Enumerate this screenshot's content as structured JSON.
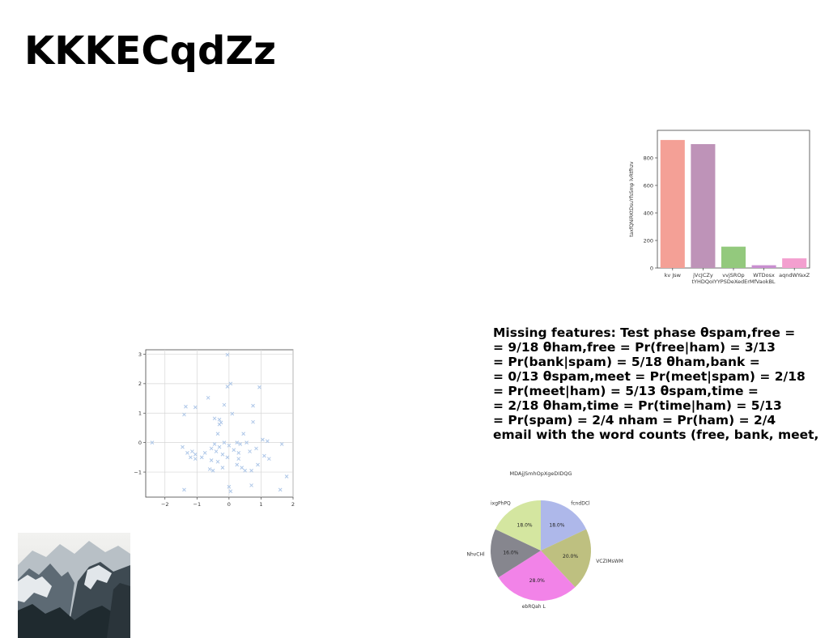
{
  "title": "KKKECqdZz",
  "text_lines": [
    "Missing features: Test phase θspam,free =",
    "= 9/18 θham,free = Pr(free|ham) = 3/13",
    "= Pr(bank|spam) = 5/18 θham,bank =",
    "= 0/13 θspam,meet = Pr(meet|spam) = 2/18",
    "= Pr(meet|ham) = 5/13 θspam,time =",
    "= 2/18 θham,time = Pr(time|ham) = 5/13",
    "= Pr(spam) = 2/4 nham = Pr(ham) = 2/4",
    "email with the word counts (free, bank, meet,"
  ],
  "chart_data": [
    {
      "type": "bar",
      "title": "",
      "xlabel": "tYHDQoIYYPSDeXedErMfVaokBL",
      "ylabel": "taxfQNiRKtDsuYfsSmp lvRtfhzv",
      "categories": [
        "kv Jsw",
        "jVcJCZy",
        "vvjSROp",
        "WTDosx",
        "aqndWYaxZ"
      ],
      "values": [
        930,
        900,
        155,
        20,
        70
      ],
      "colors": [
        "#f4a096",
        "#be93b8",
        "#93c97d",
        "#c98ed0",
        "#f39fcf"
      ],
      "ylim": [
        0,
        1000
      ],
      "yticks": [
        0,
        200,
        400,
        600,
        800
      ],
      "grid": false
    },
    {
      "type": "scatter",
      "title": "",
      "xlim": [
        -2.6,
        2.0
      ],
      "ylim": [
        -1.85,
        3.15
      ],
      "xticks": [
        -2,
        -1,
        0,
        1,
        2
      ],
      "yticks": [
        -1,
        0,
        1,
        2,
        3
      ],
      "marker": "x",
      "color": "#aec7e8",
      "grid": true,
      "points": [
        [
          -0.05,
          2.98
        ],
        [
          0.05,
          2.0
        ],
        [
          0.95,
          1.88
        ],
        [
          -0.05,
          1.9
        ],
        [
          -1.35,
          1.22
        ],
        [
          -1.05,
          1.2
        ],
        [
          -0.65,
          1.52
        ],
        [
          -0.15,
          1.28
        ],
        [
          0.75,
          1.25
        ],
        [
          -1.4,
          0.95
        ],
        [
          -0.45,
          0.82
        ],
        [
          -0.3,
          0.78
        ],
        [
          -0.25,
          0.68
        ],
        [
          -0.3,
          0.62
        ],
        [
          0.1,
          0.98
        ],
        [
          0.75,
          0.7
        ],
        [
          0.45,
          0.3
        ],
        [
          -0.35,
          0.3
        ],
        [
          -2.4,
          0.0
        ],
        [
          -1.45,
          -0.15
        ],
        [
          -1.3,
          -0.35
        ],
        [
          -1.15,
          -0.3
        ],
        [
          -1.05,
          -0.4
        ],
        [
          -1.2,
          -0.5
        ],
        [
          -1.05,
          -0.55
        ],
        [
          -0.85,
          -0.5
        ],
        [
          -0.45,
          -0.05
        ],
        [
          -0.55,
          -0.2
        ],
        [
          -0.3,
          -0.15
        ],
        [
          -0.15,
          0.0
        ],
        [
          0.0,
          -0.1
        ],
        [
          0.25,
          0.0
        ],
        [
          0.35,
          -0.05
        ],
        [
          0.55,
          0.0
        ],
        [
          0.85,
          -0.2
        ],
        [
          1.05,
          0.1
        ],
        [
          1.2,
          0.05
        ],
        [
          -0.4,
          -0.3
        ],
        [
          -0.2,
          -0.4
        ],
        [
          0.3,
          -0.35
        ],
        [
          0.65,
          -0.3
        ],
        [
          -0.55,
          -0.6
        ],
        [
          -0.35,
          -0.65
        ],
        [
          -0.05,
          -0.5
        ],
        [
          0.25,
          -0.75
        ],
        [
          0.4,
          -0.85
        ],
        [
          0.5,
          -0.95
        ],
        [
          0.7,
          -0.95
        ],
        [
          0.9,
          -0.75
        ],
        [
          1.1,
          -0.45
        ],
        [
          1.25,
          -0.55
        ],
        [
          1.65,
          -0.05
        ],
        [
          -0.6,
          -0.9
        ],
        [
          -0.5,
          -0.95
        ],
        [
          0.3,
          -0.55
        ],
        [
          0.0,
          -1.5
        ],
        [
          -1.4,
          -1.6
        ],
        [
          0.05,
          -1.65
        ],
        [
          0.7,
          -1.45
        ],
        [
          1.6,
          -1.6
        ],
        [
          1.8,
          -1.15
        ],
        [
          -0.2,
          -0.85
        ],
        [
          0.15,
          -0.25
        ],
        [
          -0.75,
          -0.35
        ]
      ]
    },
    {
      "type": "pie",
      "title": "MDAjjSmhOpXgeDIDQG",
      "slices": [
        {
          "label": "fcndDCl",
          "value": 18.0,
          "pct_label": "18.0%",
          "color": "#aeb8ea"
        },
        {
          "label": "VCZIMsWM",
          "value": 20.0,
          "pct_label": "20.0%",
          "color": "#bec080"
        },
        {
          "label": "ebRQah  L",
          "value": 28.0,
          "pct_label": "28.0%",
          "color": "#f283e8"
        },
        {
          "label": "NhvCHl",
          "value": 16.0,
          "pct_label": "16.0%",
          "color": "#86868e"
        },
        {
          "label": "ixgPhPQ",
          "value": 18.0,
          "pct_label": "18.0%",
          "color": "#d4e6a0"
        }
      ]
    }
  ],
  "photo": {
    "icon": "snowy-mountain-photo",
    "sky_color": "#e9e9e7",
    "snow_color": "#dfe3e6",
    "rock_color": "#4c5862",
    "forest_color": "#1f2a2f"
  }
}
